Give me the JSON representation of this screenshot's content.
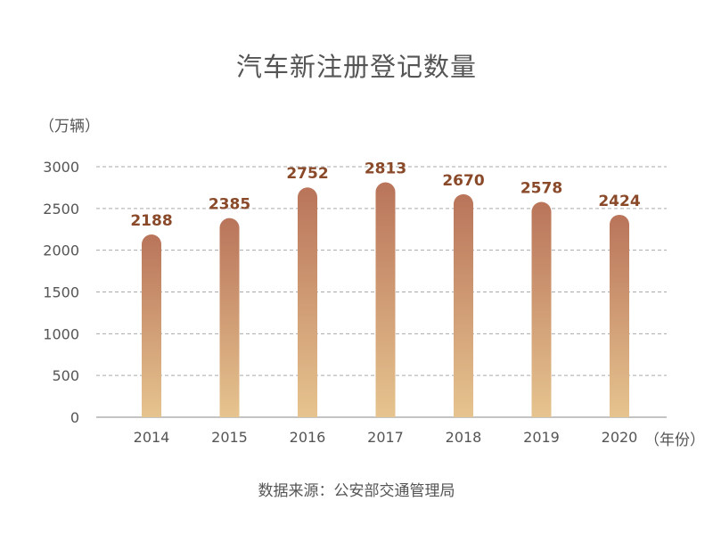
{
  "chart_data": {
    "type": "bar",
    "title": "汽车新注册登记数量",
    "ylabel": "（万辆）",
    "xlabel": "（年份）",
    "categories": [
      "2014",
      "2015",
      "2016",
      "2017",
      "2018",
      "2019",
      "2020"
    ],
    "values": [
      2188,
      2385,
      2752,
      2813,
      2670,
      2578,
      2424
    ],
    "ylim": [
      0,
      3000
    ],
    "yticks": [
      0,
      500,
      1000,
      1500,
      2000,
      2500,
      3000
    ],
    "grid": true,
    "source": "数据来源：公安部交通管理局",
    "colors": {
      "bar_top": "#b9745a",
      "bar_bottom": "#e6c48f",
      "label": "#8a4a2a",
      "grid": "#aaaaaa"
    }
  }
}
